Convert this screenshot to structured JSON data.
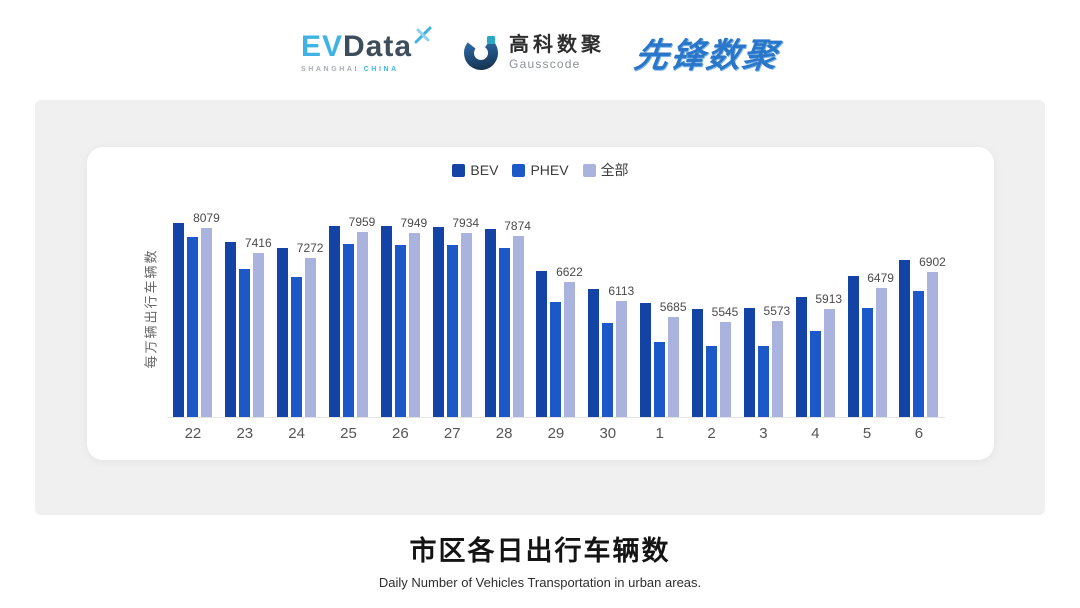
{
  "header": {
    "evdata": {
      "ev": "EV",
      "data": "Data",
      "sub_gray": "SHANGHAI",
      "sub_cyan": "CHINA",
      "accent_cyan": "#3fb3e4",
      "slate": "#3d4d5c"
    },
    "gausscode": {
      "cn": "高科数聚",
      "en": "Gausscode",
      "gradient_start": "#16324f",
      "gradient_end": "#2f73b4",
      "dot_color": "#2aa7c7"
    },
    "pioneer": {
      "text": "先锋数聚",
      "color": "#2a76c8"
    }
  },
  "chart_data": {
    "type": "bar",
    "title": "市区各日出行车辆数",
    "subtitle": "Daily Number of Vehicles Transportation in urban areas.",
    "ylabel": "每万辆出行车辆数",
    "xlabel": "",
    "categories": [
      "22",
      "23",
      "24",
      "25",
      "26",
      "27",
      "28",
      "29",
      "30",
      "1",
      "2",
      "3",
      "4",
      "5",
      "6"
    ],
    "series": [
      {
        "name": "BEV",
        "color": "#1243a5",
        "values": [
          8220,
          7690,
          7550,
          8130,
          8120,
          8110,
          8040,
          6920,
          6440,
          6050,
          5910,
          5940,
          6230,
          6780,
          7210
        ]
      },
      {
        "name": "PHEV",
        "color": "#1d58c9",
        "values": [
          7840,
          6980,
          6770,
          7660,
          7630,
          7620,
          7540,
          6090,
          5520,
          5010,
          4920,
          4920,
          5320,
          5920,
          6390
        ]
      },
      {
        "name": "全部",
        "color": "#a9b3de",
        "labeled": true,
        "values": [
          8079,
          7416,
          7272,
          7959,
          7949,
          7934,
          7874,
          6622,
          6113,
          5685,
          5545,
          5573,
          5913,
          6479,
          6902
        ]
      }
    ],
    "data_labels": [
      "8079",
      "7416",
      "7272",
      "7959",
      "7949",
      "7934",
      "7874",
      "6622",
      "6113",
      "5685",
      "5545",
      "5573",
      "5913",
      "6479",
      "6902"
    ],
    "ylim": [
      3000,
      9100
    ],
    "grid": false,
    "legend_position": "top",
    "axis_line_color": "#e3e3e6"
  },
  "caption": {
    "title": "市区各日出行车辆数",
    "subtitle": "Daily Number of Vehicles Transportation in urban areas."
  }
}
